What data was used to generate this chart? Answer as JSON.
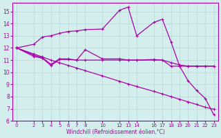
{
  "xlabel": "Windchill (Refroidissement éolien,°C)",
  "bg_color": "#d4eeee",
  "line_color": "#aa00aa",
  "grid_color": "#b8d8d8",
  "xlim": [
    -0.5,
    23.5
  ],
  "ylim": [
    6,
    15.7
  ],
  "yticks": [
    6,
    7,
    8,
    9,
    10,
    11,
    12,
    13,
    14,
    15
  ],
  "xticks": [
    0,
    2,
    3,
    4,
    5,
    6,
    7,
    8,
    10,
    12,
    13,
    14,
    16,
    17,
    18,
    19,
    20,
    21,
    22,
    23
  ],
  "line1_x": [
    0,
    2,
    3,
    4,
    5,
    6,
    7,
    8,
    10,
    12,
    13,
    14,
    16,
    17,
    18,
    19,
    20,
    21,
    22,
    23
  ],
  "line1_y": [
    12.0,
    12.3,
    12.9,
    13.0,
    13.2,
    13.35,
    13.4,
    13.5,
    13.55,
    15.1,
    15.35,
    13.0,
    14.1,
    14.35,
    12.5,
    10.5,
    9.3,
    8.5,
    7.85,
    6.5
  ],
  "line2_x": [
    0,
    2,
    3,
    4,
    5,
    6,
    7,
    8,
    10,
    12,
    13,
    14,
    16,
    17,
    18,
    19,
    20,
    21,
    22,
    23
  ],
  "line2_y": [
    12.0,
    11.3,
    11.15,
    10.55,
    11.05,
    11.05,
    11.0,
    11.0,
    11.0,
    11.0,
    11.0,
    11.0,
    11.0,
    11.0,
    10.8,
    10.6,
    10.5,
    10.5,
    10.5,
    10.5
  ],
  "line3_x": [
    0,
    2,
    3,
    4,
    5,
    6,
    7,
    8,
    10,
    12,
    13,
    14,
    16,
    17,
    18,
    19,
    20,
    21,
    22,
    23
  ],
  "line3_y": [
    12.0,
    11.4,
    11.2,
    10.65,
    11.1,
    11.1,
    11.0,
    11.85,
    11.1,
    11.1,
    11.0,
    11.0,
    11.05,
    11.0,
    10.5,
    10.5,
    10.5,
    10.5,
    10.5,
    10.5
  ],
  "line4_x": [
    0,
    2,
    3,
    4,
    5,
    6,
    7,
    8,
    10,
    12,
    13,
    14,
    16,
    17,
    18,
    19,
    20,
    21,
    22,
    23
  ],
  "line4_y": [
    12.0,
    11.5,
    11.26,
    11.0,
    10.78,
    10.56,
    10.35,
    10.13,
    9.7,
    9.26,
    9.04,
    8.83,
    8.43,
    8.22,
    8.0,
    7.78,
    7.57,
    7.35,
    7.13,
    6.96
  ]
}
